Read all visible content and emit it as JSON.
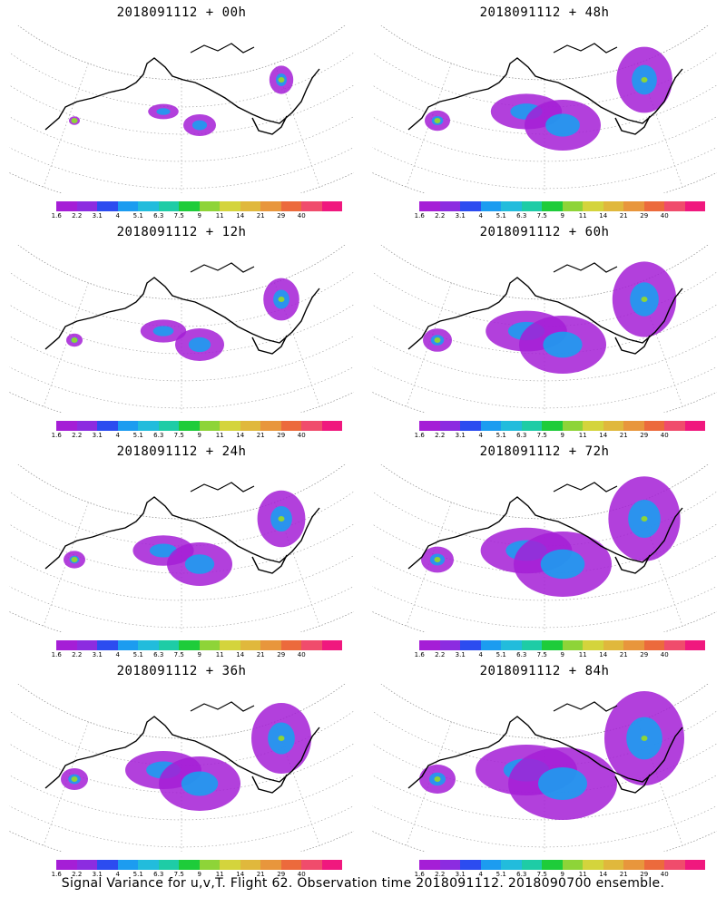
{
  "colorbar": {
    "colors": [
      "#a51ed6",
      "#8c2ce0",
      "#2c4cf0",
      "#1c9cf0",
      "#22bcdc",
      "#1ecca6",
      "#1ecc3a",
      "#8ed438",
      "#d4d43c",
      "#e0b83c",
      "#e8963c",
      "#ec6a3c",
      "#f04c6c",
      "#f0187e"
    ],
    "labels": [
      "1.6",
      "2.2",
      "3.1",
      "4",
      "5.1",
      "6.3",
      "7.5",
      "9",
      "11",
      "14",
      "21",
      "29",
      "40"
    ]
  },
  "panels": [
    {
      "title": "2018091112 + 00h"
    },
    {
      "title": "2018091112 + 48h"
    },
    {
      "title": "2018091112 + 12h"
    },
    {
      "title": "2018091112 + 60h"
    },
    {
      "title": "2018091112 + 24h"
    },
    {
      "title": "2018091112 + 72h"
    },
    {
      "title": "2018091112 + 36h"
    },
    {
      "title": "2018091112 + 84h"
    }
  ],
  "footer": "Signal Variance for u,v,T. Flight 62. Observation time 2018091112. 2018090700 ensemble."
}
